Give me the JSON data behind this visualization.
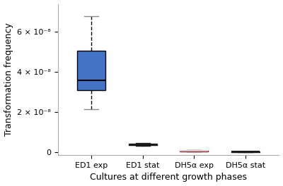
{
  "categories": [
    "ED1 exp",
    "ED1 stat",
    "DH5α exp",
    "DH5α stat"
  ],
  "box_data": {
    "ED1 exp": {
      "whislo": 2.15e-08,
      "q1": 3.1e-08,
      "med": 3.6e-08,
      "q3": 5.05e-08,
      "whishi": 6.8e-08,
      "fliers": []
    },
    "ED1 stat": {
      "whislo": 3.2e-09,
      "q1": 3.6e-09,
      "med": 3.9e-09,
      "q3": 4.3e-09,
      "whishi": 4.6e-09,
      "fliers": []
    },
    "DH5α exp": {
      "whislo": 1.5e-10,
      "q1": 2.5e-10,
      "med": 5e-10,
      "q3": 7.5e-10,
      "whishi": 9.5e-10,
      "fliers": []
    },
    "DH5α stat": {
      "whislo": 5e-11,
      "q1": 1e-10,
      "med": 1.5e-10,
      "q3": 2e-10,
      "whishi": 2.8e-10,
      "fliers": []
    }
  },
  "ylabel": "Transformation frequency",
  "xlabel": "Cultures at different growth phases",
  "ylim": [
    -1.5e-09,
    7.4e-08
  ],
  "yticks": [
    0,
    2e-08,
    4e-08,
    6e-08
  ],
  "background_color": "#ffffff",
  "figsize": [
    4.0,
    2.64
  ],
  "dpi": 100,
  "ed1exp_color": "#4472C4",
  "ed1stat_color": "#1a1a1a",
  "dh5a_exp_color": "#8B1a1a",
  "dh5a_stat_color": "#1a1a1a",
  "box_width": 0.55
}
